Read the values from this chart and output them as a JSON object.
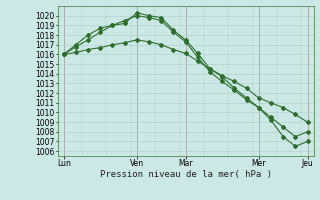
{
  "background_color": "#cce8e4",
  "grid_major_color": "#aacccc",
  "grid_minor_color": "#bbdddd",
  "line_color": "#2d6e2d",
  "ylim": [
    1005.5,
    1021.0
  ],
  "yticks": [
    1006,
    1007,
    1008,
    1009,
    1010,
    1011,
    1012,
    1013,
    1014,
    1015,
    1016,
    1017,
    1018,
    1019,
    1020
  ],
  "xtick_labels": [
    "Lun",
    "Ven",
    "Mar",
    "Mer",
    "Jeu"
  ],
  "xtick_positions": [
    0,
    24,
    40,
    64,
    80
  ],
  "xlim": [
    -2,
    82
  ],
  "xlabel": "Pression niveau de la mer( hPa )",
  "line1_x": [
    0,
    4,
    8,
    12,
    16,
    20,
    24,
    28,
    32,
    36,
    40,
    44,
    48,
    52,
    56,
    60,
    64,
    68,
    72,
    76,
    80
  ],
  "line1_y": [
    1016.0,
    1016.2,
    1016.5,
    1016.7,
    1017.0,
    1017.2,
    1017.5,
    1017.3,
    1017.0,
    1016.5,
    1016.1,
    1015.3,
    1014.5,
    1013.8,
    1013.2,
    1012.5,
    1011.5,
    1011.0,
    1010.5,
    1009.8,
    1009.0
  ],
  "line2_x": [
    0,
    4,
    8,
    12,
    16,
    20,
    24,
    28,
    32,
    36,
    40,
    44,
    48,
    52,
    56,
    60,
    64,
    68,
    72,
    76,
    80
  ],
  "line2_y": [
    1016.0,
    1017.0,
    1018.0,
    1018.7,
    1019.0,
    1019.2,
    1020.3,
    1020.0,
    1019.8,
    1018.5,
    1017.5,
    1016.1,
    1014.5,
    1013.7,
    1012.5,
    1011.5,
    1010.5,
    1009.5,
    1008.5,
    1007.5,
    1008.0
  ],
  "line3_x": [
    0,
    4,
    8,
    12,
    16,
    20,
    24,
    28,
    32,
    36,
    40,
    44,
    48,
    52,
    56,
    60,
    64,
    68,
    72,
    76,
    80
  ],
  "line3_y": [
    1016.0,
    1016.8,
    1017.5,
    1018.3,
    1019.0,
    1019.5,
    1020.0,
    1019.8,
    1019.5,
    1018.3,
    1017.3,
    1015.7,
    1014.2,
    1013.2,
    1012.3,
    1011.3,
    1010.5,
    1009.2,
    1007.5,
    1006.5,
    1007.0
  ],
  "marker_size": 2.0,
  "linewidth": 0.8,
  "fontsize_ticks": 5.5,
  "fontsize_xlabel": 6.5
}
